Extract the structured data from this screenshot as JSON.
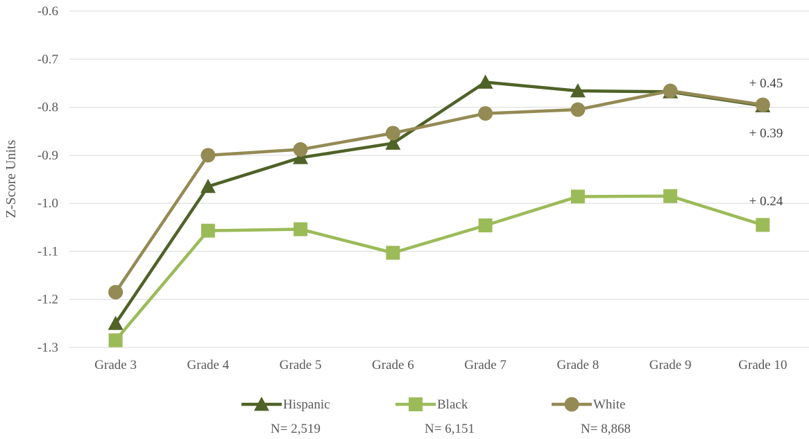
{
  "chart_data": {
    "type": "line",
    "categories": [
      "Grade 3",
      "Grade 4",
      "Grade 5",
      "Grade 6",
      "Grade 7",
      "Grade 8",
      "Grade 9",
      "Grade 10"
    ],
    "ylabel": "Z-Score Units",
    "ylim": [
      -1.3,
      -0.6
    ],
    "yticks": [
      "-0.6",
      "-0.7",
      "-0.8",
      "-0.9",
      "-1.0",
      "-1.1",
      "-1.2",
      "-1.3"
    ],
    "ytick_values": [
      -0.6,
      -0.7,
      -0.8,
      -0.9,
      -1.0,
      -1.1,
      -1.2,
      -1.3
    ],
    "grid": true,
    "legend_position": "bottom",
    "series": [
      {
        "name": "Hispanic",
        "n_label": "N= 2,519",
        "color": "#4f6228",
        "marker": "triangle",
        "values": [
          -1.25,
          -0.965,
          -0.905,
          -0.875,
          -0.748,
          -0.766,
          -0.768,
          -0.797
        ]
      },
      {
        "name": "Black",
        "n_label": "N= 6,151",
        "color": "#9bbb59",
        "marker": "square",
        "values": [
          -1.285,
          -1.057,
          -1.054,
          -1.103,
          -1.046,
          -0.986,
          -0.985,
          -1.045
        ]
      },
      {
        "name": "White",
        "n_label": "N= 8,868",
        "color": "#948a54",
        "marker": "circle",
        "values": [
          -1.185,
          -0.9,
          -0.888,
          -0.854,
          -0.813,
          -0.805,
          -0.766,
          -0.795
        ]
      }
    ],
    "annotations": [
      {
        "text": "+ 0.45",
        "near": "Grade 10",
        "series": "Hispanic/White",
        "position": "above"
      },
      {
        "text": "+ 0.39",
        "near": "Grade 10",
        "series": "Hispanic/White",
        "position": "below"
      },
      {
        "text": "+ 0.24",
        "near": "Grade 10",
        "series": "Black",
        "position": "above"
      }
    ]
  }
}
